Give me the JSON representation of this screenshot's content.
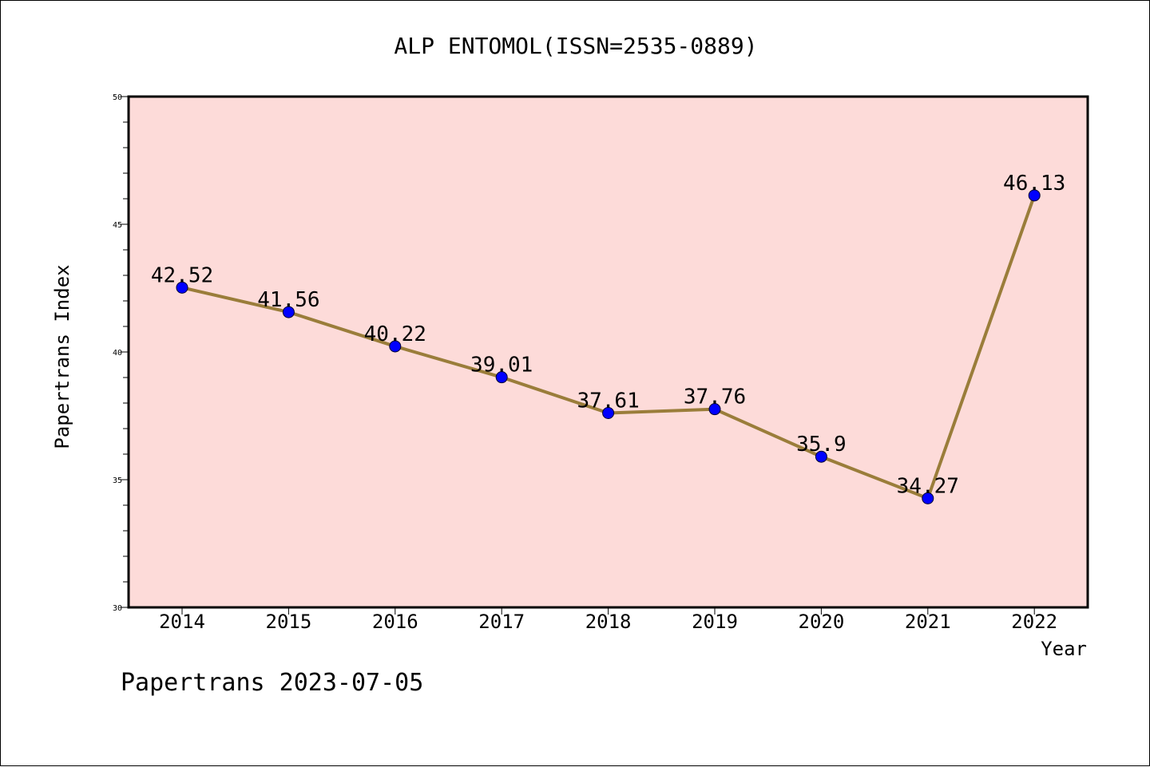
{
  "chart_data": {
    "type": "line",
    "title": "ALP ENTOMOL(ISSN=2535-0889)",
    "xlabel": "Year",
    "ylabel": "Papertrans Index",
    "categories": [
      "2014",
      "2015",
      "2016",
      "2017",
      "2018",
      "2019",
      "2020",
      "2021",
      "2022"
    ],
    "series": [
      {
        "values": [
          42.52,
          41.56,
          40.22,
          39.01,
          37.61,
          37.76,
          35.9,
          34.27,
          46.13
        ]
      }
    ],
    "data_labels": [
      "42.52",
      "41.56",
      "40.22",
      "39.01",
      "37.61",
      "37.76",
      "35.9",
      "34.27",
      "46.13"
    ],
    "ylim": [
      30,
      50
    ],
    "yticks": [
      "30",
      "35",
      "40",
      "45",
      "50"
    ],
    "grid": false,
    "colors": {
      "plot_background": "#fddbd9",
      "line": "#9a7d3a",
      "marker": "#0000ff"
    }
  },
  "footer": "Papertrans 2023-07-05"
}
